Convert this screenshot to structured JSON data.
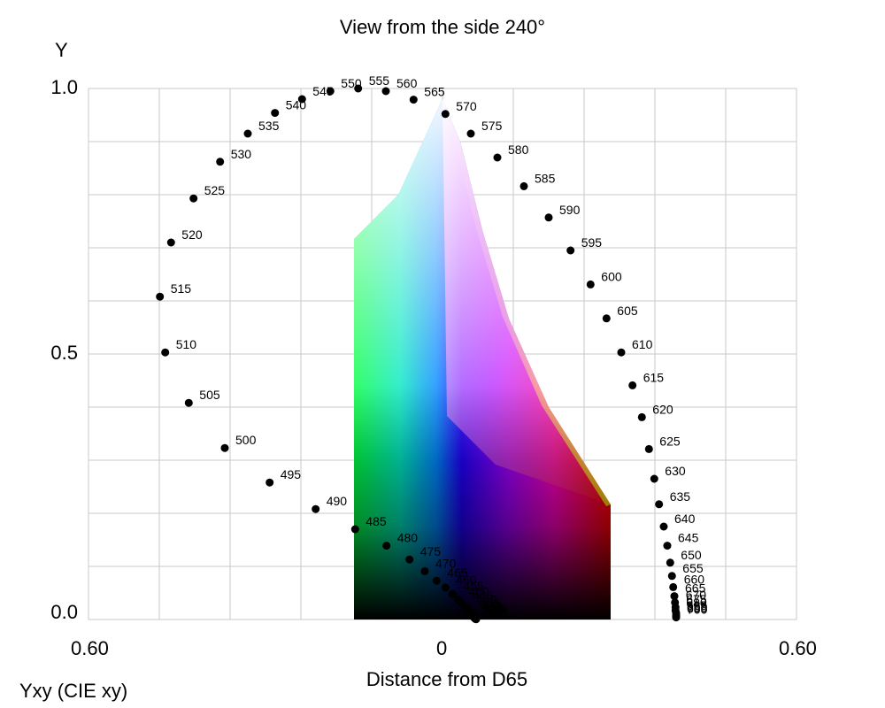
{
  "chart_data": {
    "type": "scatter",
    "title": "View from the side 240°",
    "ylabel": "Y",
    "xlabel": "Distance from D65",
    "footer": "Yxy (CIE xy)",
    "xlim": [
      -0.6,
      0.6
    ],
    "ylim": [
      0,
      1.0
    ],
    "y_ticks": [
      "0.0",
      "0.5",
      "1.0"
    ],
    "x_ticks": [
      "0.60",
      "0",
      "0.60"
    ],
    "grid": true,
    "gamut_colors": {
      "black": "#000000",
      "white": "#ffffff",
      "green": "#00ff40",
      "cyan": "#00ffff",
      "blue": "#0000ff",
      "magenta": "#ff00ff",
      "red": "#ff0000",
      "yellow": "#ffff00"
    },
    "spectral_locus": [
      {
        "nm": "490",
        "x": -0.215,
        "y": 0.208
      },
      {
        "nm": "495",
        "x": -0.293,
        "y": 0.258
      },
      {
        "nm": "500",
        "x": -0.369,
        "y": 0.323
      },
      {
        "nm": "505",
        "x": -0.43,
        "y": 0.408
      },
      {
        "nm": "510",
        "x": -0.47,
        "y": 0.503
      },
      {
        "nm": "515",
        "x": -0.479,
        "y": 0.608
      },
      {
        "nm": "520",
        "x": -0.46,
        "y": 0.71
      },
      {
        "nm": "525",
        "x": -0.422,
        "y": 0.793
      },
      {
        "nm": "530",
        "x": -0.377,
        "y": 0.862
      },
      {
        "nm": "535",
        "x": -0.33,
        "y": 0.915
      },
      {
        "nm": "540",
        "x": -0.284,
        "y": 0.954
      },
      {
        "nm": "545",
        "x": -0.238,
        "y": 0.98
      },
      {
        "nm": "550",
        "x": -0.19,
        "y": 0.995
      },
      {
        "nm": "555",
        "x": -0.143,
        "y": 1.0
      },
      {
        "nm": "560",
        "x": -0.096,
        "y": 0.995
      },
      {
        "nm": "565",
        "x": -0.049,
        "y": 0.979
      },
      {
        "nm": "570",
        "x": 0.005,
        "y": 0.952
      },
      {
        "nm": "575",
        "x": 0.048,
        "y": 0.915
      },
      {
        "nm": "580",
        "x": 0.093,
        "y": 0.87
      },
      {
        "nm": "585",
        "x": 0.138,
        "y": 0.816
      },
      {
        "nm": "590",
        "x": 0.18,
        "y": 0.757
      },
      {
        "nm": "595",
        "x": 0.217,
        "y": 0.695
      },
      {
        "nm": "600",
        "x": 0.251,
        "y": 0.631
      },
      {
        "nm": "605",
        "x": 0.278,
        "y": 0.567
      },
      {
        "nm": "610",
        "x": 0.303,
        "y": 0.503
      },
      {
        "nm": "615",
        "x": 0.322,
        "y": 0.441
      },
      {
        "nm": "620",
        "x": 0.338,
        "y": 0.381
      },
      {
        "nm": "625",
        "x": 0.35,
        "y": 0.321
      },
      {
        "nm": "630",
        "x": 0.359,
        "y": 0.265
      },
      {
        "nm": "635",
        "x": 0.367,
        "y": 0.217
      },
      {
        "nm": "640",
        "x": 0.375,
        "y": 0.175
      },
      {
        "nm": "645",
        "x": 0.381,
        "y": 0.139
      },
      {
        "nm": "650",
        "x": 0.386,
        "y": 0.107
      },
      {
        "nm": "655",
        "x": 0.389,
        "y": 0.082
      },
      {
        "nm": "660",
        "x": 0.391,
        "y": 0.061
      },
      {
        "nm": "665",
        "x": 0.393,
        "y": 0.044
      },
      {
        "nm": "670",
        "x": 0.394,
        "y": 0.032
      },
      {
        "nm": "675",
        "x": 0.395,
        "y": 0.023
      },
      {
        "nm": "680",
        "x": 0.395,
        "y": 0.017
      },
      {
        "nm": "685",
        "x": 0.396,
        "y": 0.012
      },
      {
        "nm": "690",
        "x": 0.396,
        "y": 0.008
      },
      {
        "nm": "695",
        "x": 0.396,
        "y": 0.006
      },
      {
        "nm": "700",
        "x": 0.396,
        "y": 0.004
      },
      {
        "nm": "485",
        "x": -0.148,
        "y": 0.17
      },
      {
        "nm": "480",
        "x": -0.095,
        "y": 0.139
      },
      {
        "nm": "475",
        "x": -0.056,
        "y": 0.113
      },
      {
        "nm": "470",
        "x": -0.03,
        "y": 0.091
      },
      {
        "nm": "465",
        "x": -0.01,
        "y": 0.073
      },
      {
        "nm": "460",
        "x": 0.005,
        "y": 0.06
      },
      {
        "nm": "455",
        "x": 0.017,
        "y": 0.048
      },
      {
        "nm": "450",
        "x": 0.026,
        "y": 0.038
      },
      {
        "nm": "445",
        "x": 0.033,
        "y": 0.03
      },
      {
        "nm": "440",
        "x": 0.039,
        "y": 0.023
      },
      {
        "nm": "435",
        "x": 0.044,
        "y": 0.017
      },
      {
        "nm": "430",
        "x": 0.047,
        "y": 0.012
      },
      {
        "nm": "425",
        "x": 0.05,
        "y": 0.008
      },
      {
        "nm": "420",
        "x": 0.052,
        "y": 0.005
      },
      {
        "nm": "415",
        "x": 0.054,
        "y": 0.003
      },
      {
        "nm": "410",
        "x": 0.055,
        "y": 0.002
      },
      {
        "nm": "405",
        "x": 0.056,
        "y": 0.001
      },
      {
        "nm": "400",
        "x": 0.057,
        "y": 0.0005
      }
    ]
  }
}
